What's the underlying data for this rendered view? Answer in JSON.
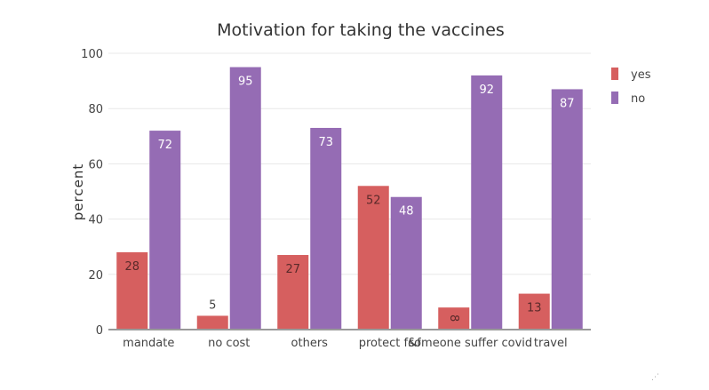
{
  "chart_data": {
    "type": "bar",
    "title": "Motivation for taking the vaccines",
    "xlabel": "",
    "ylabel": "percent",
    "ylim": [
      0,
      100
    ],
    "yticks": [
      0,
      20,
      40,
      60,
      80,
      100
    ],
    "grid": true,
    "legend_position": "top-right",
    "categories": [
      "mandate",
      "no cost",
      "others",
      "protect f&f",
      "someone suffer covid",
      "travel"
    ],
    "series": [
      {
        "name": "yes",
        "color": "#d65f5f",
        "values": [
          28,
          5,
          27,
          52,
          8,
          13
        ]
      },
      {
        "name": "no",
        "color": "#956cb4",
        "values": [
          72,
          95,
          73,
          48,
          92,
          87
        ]
      }
    ]
  }
}
